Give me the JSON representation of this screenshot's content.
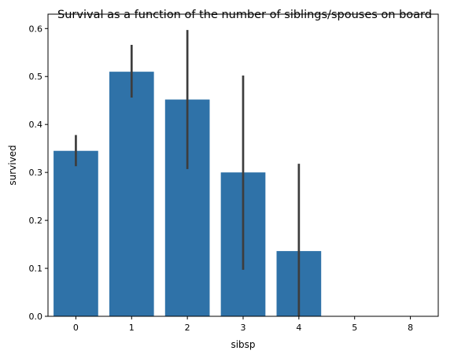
{
  "chart_data": {
    "type": "bar",
    "title": "Survival as a function of the number of siblings/spouses on board",
    "xlabel": "sibsp",
    "ylabel": "survived",
    "categories": [
      "0",
      "1",
      "2",
      "3",
      "4",
      "5",
      "8"
    ],
    "values": [
      0.345,
      0.51,
      0.452,
      0.3,
      0.136,
      0.0,
      0.0
    ],
    "error_bars": [
      [
        0.313,
        0.378
      ],
      [
        0.456,
        0.566
      ],
      [
        0.307,
        0.597
      ],
      [
        0.097,
        0.502
      ],
      [
        0.0,
        0.318
      ],
      null,
      null
    ],
    "ylim": [
      0,
      0.63
    ],
    "yticks": [
      0.0,
      0.1,
      0.2,
      0.3,
      0.4,
      0.5,
      0.6
    ],
    "ytick_labels": [
      "0.0",
      "0.1",
      "0.2",
      "0.3",
      "0.4",
      "0.5",
      "0.6"
    ],
    "grid": false,
    "legend": "none",
    "colors": {
      "bar": "#2f72a8",
      "error_bar": "#3d3d3d",
      "axis": "#000000"
    }
  }
}
